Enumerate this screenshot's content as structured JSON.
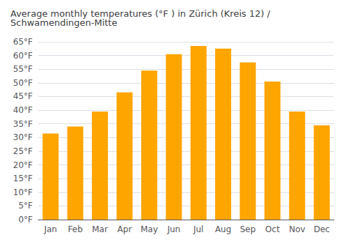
{
  "chart_data": {
    "type": "bar",
    "title": "Average monthly temperatures (°F ) in Zürich (Kreis 12) / Schwamendingen-Mitte",
    "categories": [
      "Jan",
      "Feb",
      "Mar",
      "Apr",
      "May",
      "Jun",
      "Jul",
      "Aug",
      "Sep",
      "Oct",
      "Nov",
      "Dec"
    ],
    "values": [
      31.5,
      34.0,
      39.5,
      46.5,
      54.5,
      60.5,
      63.5,
      62.5,
      57.5,
      50.5,
      39.5,
      34.5
    ],
    "color": "#FFA500",
    "ylim": [
      0,
      65
    ],
    "yticks": [
      {
        "value": 0,
        "label": "0°F"
      },
      {
        "value": 5,
        "label": "5°F"
      },
      {
        "value": 10,
        "label": "10°F"
      },
      {
        "value": 15,
        "label": "15°F"
      },
      {
        "value": 20,
        "label": "20°F"
      },
      {
        "value": 25,
        "label": "25°F"
      },
      {
        "value": 30,
        "label": "30°F"
      },
      {
        "value": 35,
        "label": "35°F"
      },
      {
        "value": 40,
        "label": "40°F"
      },
      {
        "value": 45,
        "label": "45°F"
      },
      {
        "value": 50,
        "label": "50°F"
      },
      {
        "value": 55,
        "label": "55°F"
      },
      {
        "value": 60,
        "label": "60°F"
      },
      {
        "value": 65,
        "label": "65°F"
      }
    ],
    "grid": true
  }
}
